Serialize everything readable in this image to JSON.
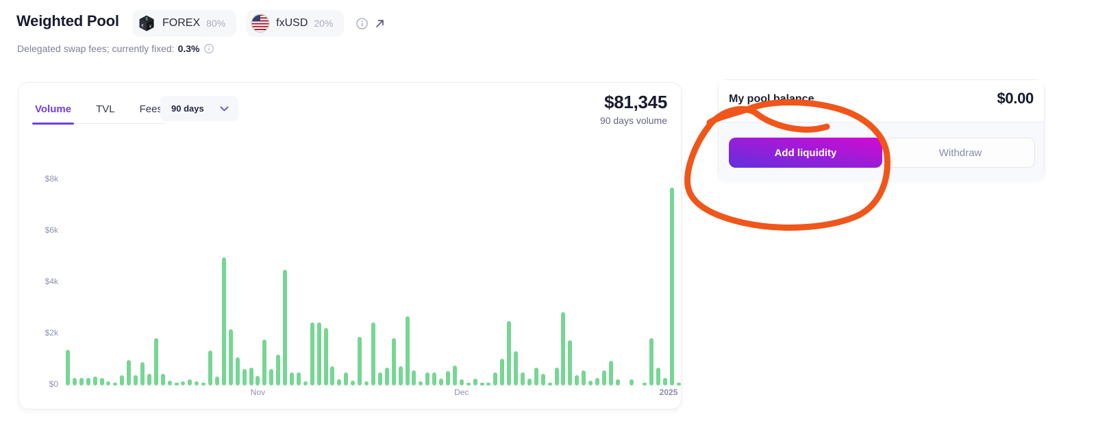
{
  "page": {
    "title": "Weighted Pool",
    "subtitle_prefix": "Delegated swap fees; currently fixed:",
    "subtitle_value": "0.3%"
  },
  "tokens": [
    {
      "symbol": "FOREX",
      "weight": "80%",
      "icon": "currency-cube-icon"
    },
    {
      "symbol": "fxUSD",
      "weight": "20%",
      "icon": "us-flag-icon"
    }
  ],
  "header_icons": {
    "info": "info-icon",
    "external": "external-link-icon"
  },
  "chart_card": {
    "tabs": [
      {
        "label": "Volume",
        "active": true
      },
      {
        "label": "TVL",
        "active": false
      },
      {
        "label": "Fees",
        "active": false
      }
    ],
    "range_select": {
      "value": "90 days",
      "icon": "chevron-down-icon"
    },
    "total_value": "$81,345",
    "total_label": "90 days volume"
  },
  "chart_data": {
    "type": "bar",
    "title": "90 days volume",
    "xlabel": "",
    "ylabel": "",
    "unit": "USD per day",
    "bar_color": "#76d693",
    "ylim": [
      0,
      8000
    ],
    "grid": false,
    "yticks": [
      {
        "label": "$0",
        "value": 0
      },
      {
        "label": "$2k",
        "value": 2000
      },
      {
        "label": "$4k",
        "value": 4000
      },
      {
        "label": "$6k",
        "value": 6000
      },
      {
        "label": "$8k",
        "value": 8000
      }
    ],
    "x_axis_labels": [
      {
        "label": "Nov",
        "index": 28,
        "style": "normal"
      },
      {
        "label": "Dec",
        "index": 58,
        "style": "normal"
      },
      {
        "label": "2025",
        "index": 88.5,
        "style": "year"
      }
    ],
    "values": [
      1400,
      300,
      300,
      300,
      350,
      300,
      150,
      100,
      400,
      1000,
      400,
      900,
      450,
      1850,
      450,
      200,
      80,
      150,
      250,
      150,
      80,
      1350,
      350,
      5000,
      2200,
      1100,
      650,
      700,
      370,
      1800,
      650,
      1200,
      4500,
      500,
      500,
      150,
      2450,
      2450,
      2250,
      750,
      250,
      500,
      200,
      1900,
      150,
      2450,
      500,
      700,
      1850,
      750,
      2700,
      600,
      150,
      500,
      500,
      270,
      550,
      770,
      250,
      50,
      270,
      120,
      100,
      500,
      1050,
      2500,
      1330,
      500,
      270,
      700,
      450,
      100,
      700,
      2850,
      1750,
      400,
      600,
      200,
      300,
      600,
      950,
      250,
      0,
      250,
      0,
      120,
      1850,
      700,
      300,
      7700,
      100
    ]
  },
  "balance_card": {
    "title": "My pool balance",
    "value": "$0.00",
    "add_button": "Add liquidity",
    "withdraw_button": "Withdraw"
  },
  "annotation": {
    "shape": "hand-drawn-circle",
    "color": "#f0561a"
  },
  "colors": {
    "accent_purple": "#6d3ff0",
    "bar_green": "#76d693",
    "button_gradient": [
      "#6330dd",
      "#d20ad2"
    ],
    "annotation_orange": "#f0561a"
  }
}
